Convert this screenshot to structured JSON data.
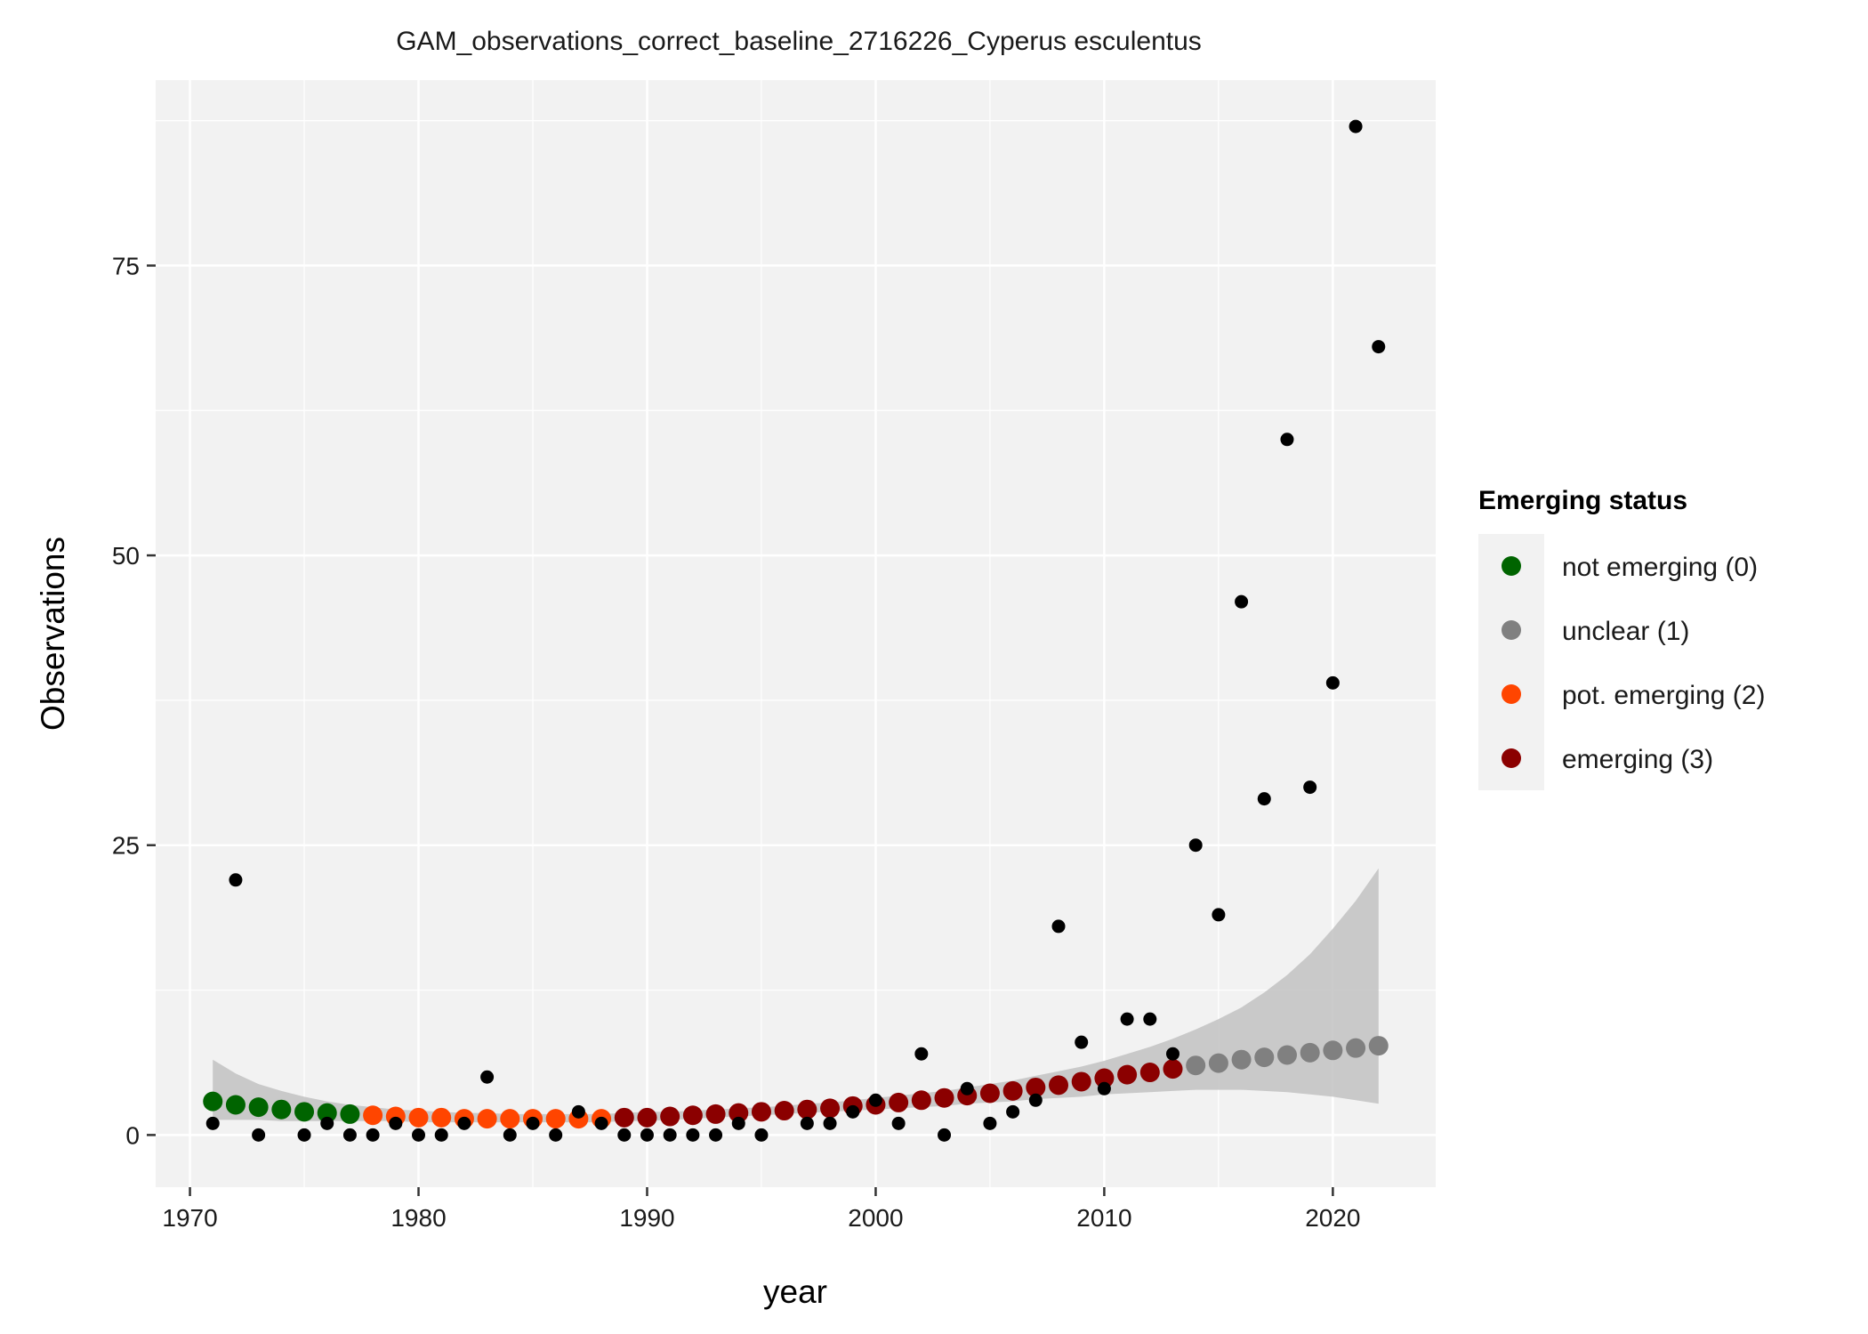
{
  "chart_data": {
    "type": "scatter",
    "title": "GAM_observations_correct_baseline_2716226_Cyperus esculentus",
    "xlabel": "year",
    "ylabel": "Observations",
    "xlim": [
      1968.5,
      2024.5
    ],
    "ylim": [
      -4.5,
      91
    ],
    "x_ticks": [
      1970,
      1980,
      1990,
      2000,
      2010,
      2020
    ],
    "y_ticks": [
      0,
      25,
      50,
      75
    ],
    "grid": true,
    "legend": {
      "title": "Emerging status",
      "position": "right",
      "items": [
        {
          "label": "not emerging (0)",
          "status": 0,
          "color": "#006400"
        },
        {
          "label": "unclear (1)",
          "status": 1,
          "color": "#808080"
        },
        {
          "label": "pot. emerging (2)",
          "status": 2,
          "color": "#ff4500"
        },
        {
          "label": "emerging (3)",
          "status": 3,
          "color": "#8b0000"
        }
      ]
    },
    "observations": {
      "color": "#000000",
      "points": [
        [
          1971,
          1
        ],
        [
          1972,
          22
        ],
        [
          1973,
          0
        ],
        [
          1975,
          0
        ],
        [
          1976,
          1
        ],
        [
          1977,
          0
        ],
        [
          1978,
          0
        ],
        [
          1979,
          1
        ],
        [
          1980,
          0
        ],
        [
          1981,
          0
        ],
        [
          1982,
          1
        ],
        [
          1983,
          5
        ],
        [
          1984,
          0
        ],
        [
          1985,
          1
        ],
        [
          1986,
          0
        ],
        [
          1987,
          2
        ],
        [
          1988,
          1
        ],
        [
          1989,
          0
        ],
        [
          1990,
          0
        ],
        [
          1991,
          0
        ],
        [
          1992,
          0
        ],
        [
          1993,
          0
        ],
        [
          1994,
          1
        ],
        [
          1995,
          0
        ],
        [
          1997,
          1
        ],
        [
          1998,
          1
        ],
        [
          1999,
          2
        ],
        [
          2000,
          3
        ],
        [
          2001,
          1
        ],
        [
          2002,
          7
        ],
        [
          2003,
          0
        ],
        [
          2004,
          4
        ],
        [
          2005,
          1
        ],
        [
          2006,
          2
        ],
        [
          2007,
          3
        ],
        [
          2008,
          18
        ],
        [
          2009,
          8
        ],
        [
          2010,
          4
        ],
        [
          2011,
          10
        ],
        [
          2012,
          10
        ],
        [
          2013,
          7
        ],
        [
          2014,
          25
        ],
        [
          2015,
          19
        ],
        [
          2016,
          46
        ],
        [
          2017,
          29
        ],
        [
          2018,
          60
        ],
        [
          2019,
          30
        ],
        [
          2020,
          39
        ],
        [
          2021,
          87
        ],
        [
          2022,
          68
        ]
      ]
    },
    "gam_fit": {
      "x": [
        1971,
        1972,
        1973,
        1974,
        1975,
        1976,
        1977,
        1978,
        1979,
        1980,
        1981,
        1982,
        1983,
        1984,
        1985,
        1986,
        1987,
        1988,
        1989,
        1990,
        1991,
        1992,
        1993,
        1994,
        1995,
        1996,
        1997,
        1998,
        1999,
        2000,
        2001,
        2002,
        2003,
        2004,
        2005,
        2006,
        2007,
        2008,
        2009,
        2010,
        2011,
        2012,
        2013,
        2014,
        2015,
        2016,
        2017,
        2018,
        2019,
        2020,
        2021,
        2022
      ],
      "y": [
        2.9,
        2.6,
        2.4,
        2.2,
        2.0,
        1.9,
        1.8,
        1.7,
        1.6,
        1.5,
        1.5,
        1.4,
        1.4,
        1.4,
        1.4,
        1.4,
        1.4,
        1.4,
        1.5,
        1.5,
        1.6,
        1.7,
        1.8,
        1.9,
        2.0,
        2.1,
        2.2,
        2.3,
        2.5,
        2.6,
        2.8,
        3.0,
        3.2,
        3.4,
        3.6,
        3.8,
        4.1,
        4.3,
        4.6,
        4.9,
        5.2,
        5.4,
        5.7,
        6.0,
        6.2,
        6.5,
        6.7,
        6.9,
        7.1,
        7.3,
        7.5,
        7.7
      ],
      "status": [
        0,
        0,
        0,
        0,
        0,
        0,
        0,
        2,
        2,
        2,
        2,
        2,
        2,
        2,
        2,
        2,
        2,
        2,
        3,
        3,
        3,
        3,
        3,
        3,
        3,
        3,
        3,
        3,
        3,
        3,
        3,
        3,
        3,
        3,
        3,
        3,
        3,
        3,
        3,
        3,
        3,
        3,
        3,
        1,
        1,
        1,
        1,
        1,
        1,
        1,
        1,
        1
      ],
      "ci_lower": [
        1.3,
        1.3,
        1.3,
        1.2,
        1.2,
        1.2,
        1.2,
        1.2,
        1.2,
        1.1,
        1.1,
        1.1,
        1.1,
        1.1,
        1.1,
        1.1,
        1.1,
        1.1,
        1.2,
        1.2,
        1.3,
        1.4,
        1.5,
        1.6,
        1.7,
        1.8,
        1.9,
        2.0,
        2.1,
        2.2,
        2.3,
        2.4,
        2.5,
        2.7,
        2.8,
        2.9,
        3.1,
        3.2,
        3.3,
        3.5,
        3.6,
        3.7,
        3.8,
        3.9,
        3.9,
        3.9,
        3.8,
        3.7,
        3.5,
        3.3,
        3.0,
        2.7
      ],
      "ci_upper": [
        6.5,
        5.3,
        4.4,
        3.8,
        3.3,
        2.9,
        2.6,
        2.4,
        2.2,
        2.1,
        2.0,
        1.9,
        1.9,
        1.8,
        1.8,
        1.8,
        1.8,
        1.8,
        1.9,
        2.0,
        2.0,
        2.1,
        2.2,
        2.3,
        2.4,
        2.5,
        2.7,
        2.8,
        3.0,
        3.2,
        3.4,
        3.6,
        3.8,
        4.1,
        4.4,
        4.7,
        5.1,
        5.5,
        5.9,
        6.4,
        7.0,
        7.6,
        8.3,
        9.1,
        10.0,
        11.0,
        12.3,
        13.8,
        15.6,
        17.8,
        20.2,
        23.0
      ]
    }
  }
}
